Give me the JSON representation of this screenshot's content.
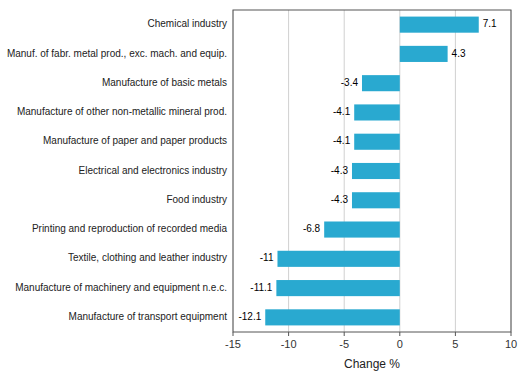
{
  "chart_data": {
    "type": "bar",
    "orientation": "horizontal",
    "categories": [
      "Manufacture of transport equipment",
      "Manufacture of machinery and equipment n.e.c.",
      "Textile, clothing and leather industry",
      "Printing and reproduction of recorded media",
      "Food industry",
      "Electrical and electronics industry",
      "Manufacture of paper and paper products",
      "Manufacture of other non-metallic mineral prod.",
      "Manufacture of basic metals",
      "Manuf. of fabr. metal prod., exc. mach. and equip.",
      "Chemical industry"
    ],
    "values": [
      -12.1,
      -11.1,
      -11.0,
      -6.8,
      -4.3,
      -4.3,
      -4.1,
      -4.1,
      -3.4,
      4.3,
      7.1
    ],
    "color": "#29a9d0",
    "xlim": [
      -15,
      10
    ],
    "xticks": [
      -15,
      -10,
      -5,
      0,
      5,
      10
    ],
    "xlabel": "Change %",
    "grid": true,
    "data_labels": true
  }
}
